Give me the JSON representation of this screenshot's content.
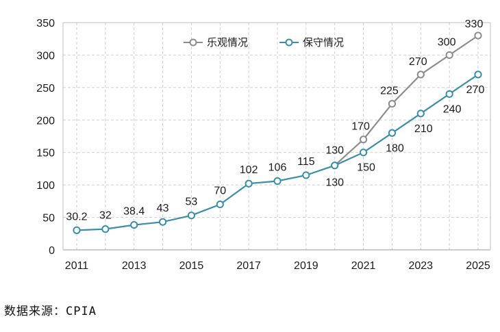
{
  "chart_data": {
    "type": "line",
    "x": [
      "2011",
      "2012",
      "2013",
      "2014",
      "2015",
      "2016",
      "2017",
      "2018",
      "2019",
      "2020",
      "2021",
      "2022",
      "2023",
      "2024",
      "2025"
    ],
    "x_tick_labels": [
      "2011",
      "2013",
      "2015",
      "2017",
      "2019",
      "2021",
      "2023",
      "2025"
    ],
    "y_ticks": [
      0,
      50,
      100,
      150,
      200,
      250,
      300,
      350
    ],
    "ylim": [
      0,
      350
    ],
    "grid": "dashed",
    "legend_position": "top",
    "series": [
      {
        "name": "乐观情况",
        "color": "#8c8c8c",
        "values": [
          null,
          null,
          null,
          null,
          null,
          null,
          null,
          null,
          null,
          130,
          170,
          225,
          270,
          300,
          330
        ],
        "labels": [
          "",
          "",
          "",
          "",
          "",
          "",
          "",
          "",
          "",
          "",
          "170",
          "225",
          "270",
          "300",
          "330"
        ]
      },
      {
        "name": "保守情况",
        "color": "#3b8ea5",
        "values": [
          30.2,
          32,
          38.4,
          43,
          53,
          70,
          102,
          106,
          115,
          130,
          150,
          180,
          210,
          240,
          270
        ],
        "labels": [
          "30.2",
          "32",
          "38.4",
          "43",
          "53",
          "70",
          "102",
          "106",
          "115",
          "130",
          "150",
          "180",
          "210",
          "240",
          "270"
        ]
      }
    ],
    "point_label_extra": {
      "index": 9,
      "text": "130"
    }
  },
  "source_note": "数据来源：CPIA"
}
